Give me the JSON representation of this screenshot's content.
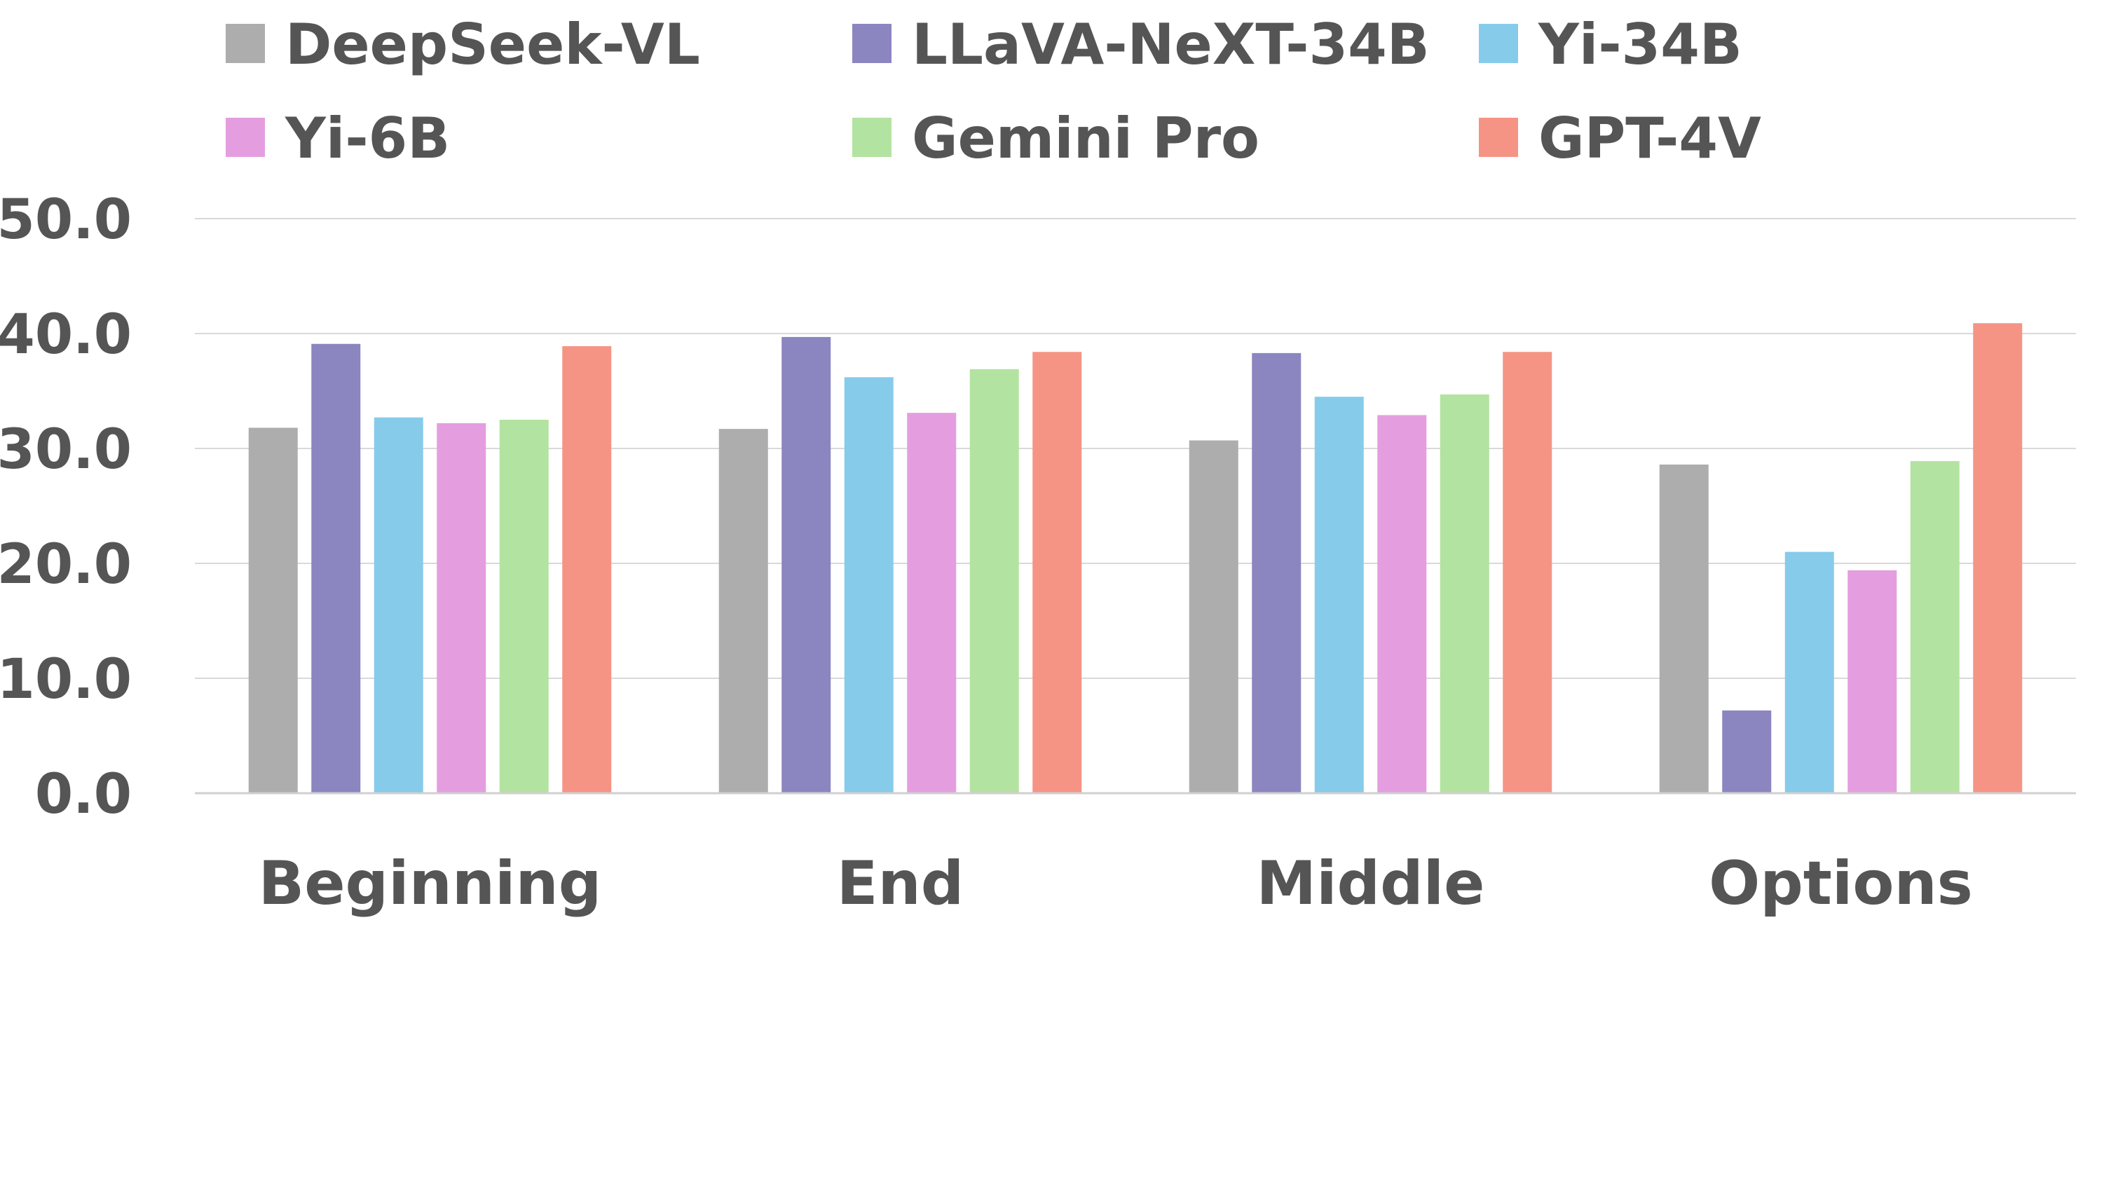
{
  "chart_data": {
    "type": "bar",
    "categories": [
      "Beginning",
      "End",
      "Middle",
      "Options"
    ],
    "series": [
      {
        "name": "DeepSeek-VL",
        "color": "#adadad",
        "values": [
          31.8,
          31.7,
          30.7,
          28.6
        ]
      },
      {
        "name": "LLaVA-NeXT-34B",
        "color": "#8b86c0",
        "values": [
          39.1,
          39.7,
          38.3,
          7.2
        ]
      },
      {
        "name": "Yi-34B",
        "color": "#87cbea",
        "values": [
          32.7,
          36.2,
          34.5,
          21.0
        ]
      },
      {
        "name": "Yi-6B",
        "color": "#e49edf",
        "values": [
          32.2,
          33.1,
          32.9,
          19.4
        ]
      },
      {
        "name": "Gemini Pro",
        "color": "#b3e3a0",
        "values": [
          32.5,
          36.9,
          34.7,
          28.9
        ]
      },
      {
        "name": "GPT-4V",
        "color": "#f59485",
        "values": [
          38.9,
          38.4,
          38.4,
          40.9
        ]
      }
    ],
    "yticks": [
      "0.0",
      "10.0",
      "20.0",
      "30.0",
      "40.0",
      "50.0"
    ],
    "ylim": [
      0,
      50
    ],
    "grid": true,
    "legend_position": "top",
    "title": "",
    "xlabel": "",
    "ylabel": ""
  }
}
